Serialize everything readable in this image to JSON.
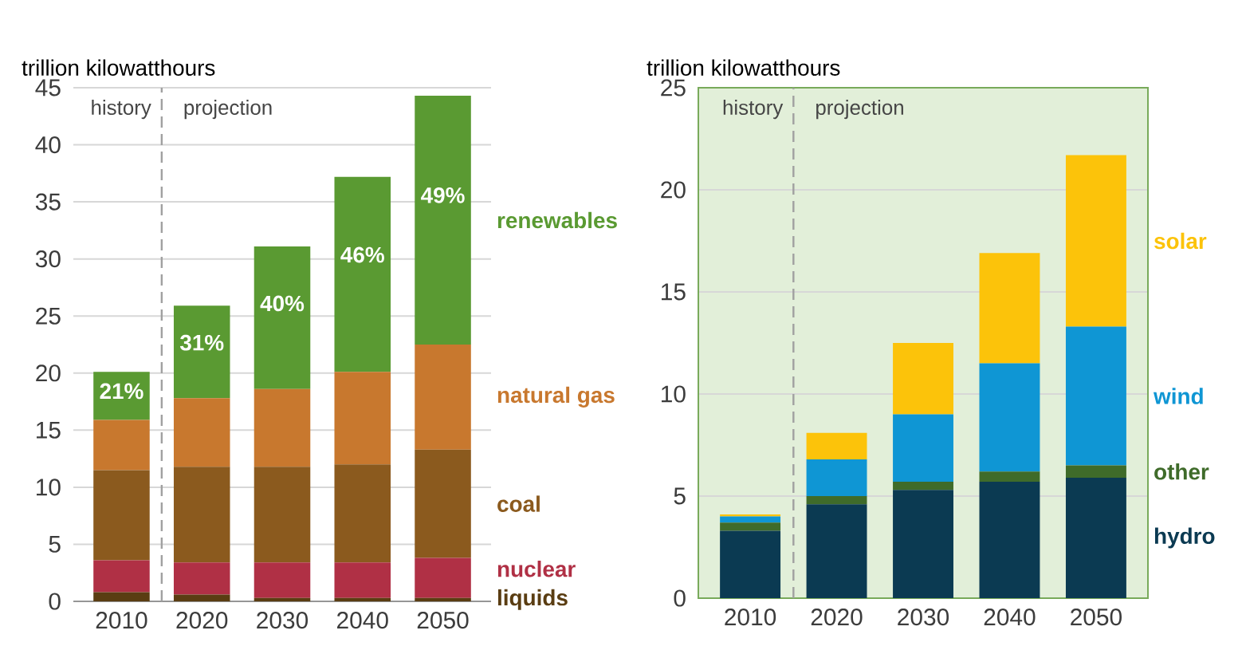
{
  "chart_data": [
    {
      "type": "bar",
      "stacked": true,
      "ylabel": "trillion kilowatthours",
      "grid": "y",
      "x": [
        2010,
        2020,
        2030,
        2040,
        2050
      ],
      "xlim": [
        2004,
        2056
      ],
      "xticks": [
        2010,
        2020,
        2030,
        2040,
        2050
      ],
      "ylim": [
        0,
        45
      ],
      "yticks": [
        0,
        5,
        10,
        15,
        20,
        25,
        30,
        35,
        40,
        45
      ],
      "series": [
        {
          "name": "liquids",
          "color": "#5a3d12",
          "values": [
            0.8,
            0.6,
            0.3,
            0.3,
            0.3
          ]
        },
        {
          "name": "nuclear",
          "color": "#b03045",
          "values": [
            2.8,
            2.8,
            3.1,
            3.1,
            3.5
          ]
        },
        {
          "name": "coal",
          "color": "#8b5a1e",
          "values": [
            7.9,
            8.4,
            8.4,
            8.6,
            9.5
          ]
        },
        {
          "name": "natural gas",
          "color": "#c8782e",
          "values": [
            4.4,
            6.0,
            6.8,
            8.1,
            9.2
          ]
        },
        {
          "name": "renewables",
          "color": "#5a9a32",
          "values": [
            4.2,
            8.1,
            12.5,
            17.1,
            21.8
          ]
        }
      ],
      "ref_lines": [
        {
          "axis": "x",
          "value": 2015,
          "color": "#a0a0a0",
          "line_style": "dashed"
        }
      ],
      "annotations": [
        "history",
        "projection",
        "21%",
        "31%",
        "40%",
        "46%",
        "49%"
      ]
    },
    {
      "type": "bar",
      "stacked": true,
      "ylabel": "trillion kilowatthours",
      "grid": "y",
      "x": [
        2010,
        2020,
        2030,
        2040,
        2050
      ],
      "xlim": [
        2004,
        2056
      ],
      "xticks": [
        2010,
        2020,
        2030,
        2040,
        2050
      ],
      "ylim": [
        0,
        25
      ],
      "yticks": [
        0,
        5,
        10,
        15,
        20,
        25
      ],
      "series": [
        {
          "name": "hydro",
          "color": "#0b3a52",
          "values": [
            3.3,
            4.6,
            5.3,
            5.7,
            5.9
          ]
        },
        {
          "name": "other",
          "color": "#3f6b2a",
          "values": [
            0.4,
            0.4,
            0.4,
            0.5,
            0.6
          ]
        },
        {
          "name": "wind",
          "color": "#0f96d4",
          "values": [
            0.3,
            1.8,
            3.3,
            5.3,
            6.8
          ]
        },
        {
          "name": "solar",
          "color": "#fcc30a",
          "values": [
            0.1,
            1.3,
            3.5,
            5.4,
            8.4
          ]
        }
      ],
      "ref_lines": [
        {
          "axis": "x",
          "value": 2015,
          "color": "#a0a0a0",
          "line_style": "dashed"
        }
      ],
      "annotations": [
        "history",
        "projection"
      ]
    }
  ]
}
